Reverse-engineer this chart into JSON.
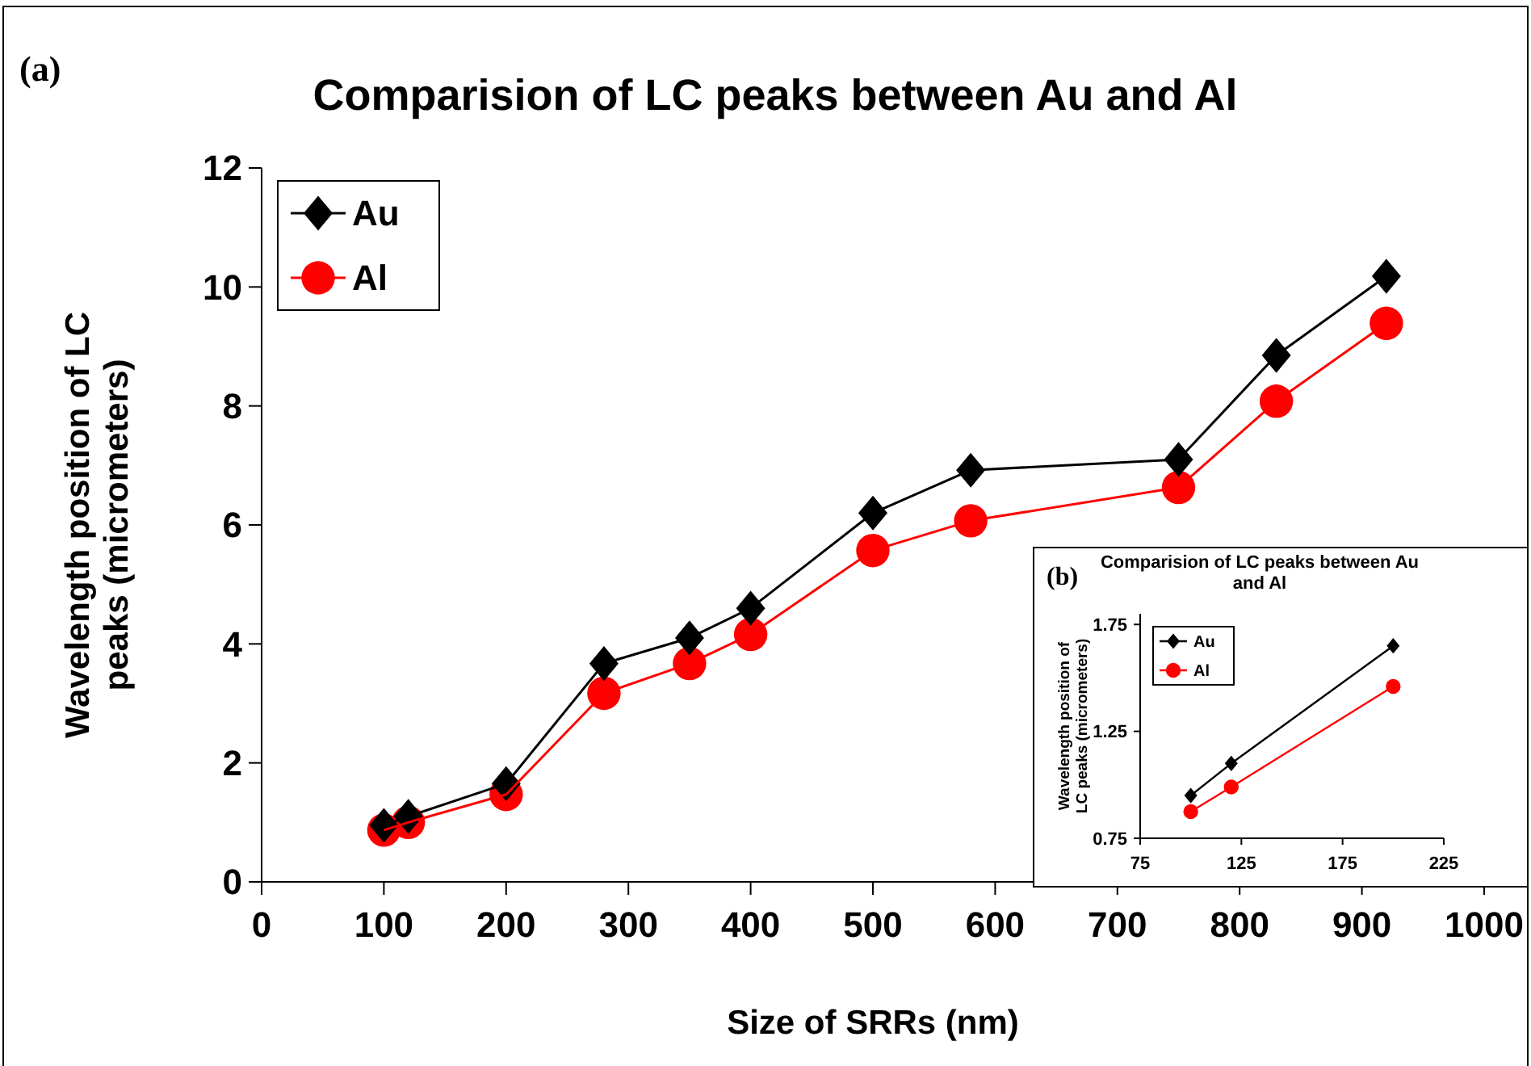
{
  "chart_data": [
    {
      "type": "line",
      "title": "Comparision of LC peaks between Au and Al",
      "xlabel": "Size of SRRs (nm)",
      "ylabel": "Wavelength position of LC peaks (micrometers)",
      "annotations": [
        "(a)"
      ],
      "x": [
        100,
        120,
        200,
        280,
        350,
        400,
        500,
        580,
        750,
        830,
        920
      ],
      "series": [
        {
          "name": "Au",
          "color": "#000000",
          "marker": "diamond",
          "values": [
            0.95,
            1.1,
            1.65,
            3.67,
            4.1,
            4.6,
            6.2,
            6.92,
            7.1,
            8.85,
            10.18
          ]
        },
        {
          "name": "Al",
          "color": "#ff0000",
          "marker": "circle",
          "values": [
            0.87,
            1.0,
            1.47,
            3.17,
            3.67,
            4.16,
            5.57,
            6.07,
            6.63,
            8.08,
            9.39
          ]
        }
      ],
      "xlim": [
        0,
        1000
      ],
      "xticks": [
        0,
        100,
        200,
        300,
        400,
        500,
        600,
        700,
        800,
        900,
        1000
      ],
      "ylim": [
        0,
        12
      ],
      "yticks": [
        0,
        2,
        4,
        6,
        8,
        10,
        12
      ],
      "grid": false,
      "legend": "top left",
      "line_style": "solid"
    },
    {
      "type": "line",
      "title": "Comparision of LC peaks between Au and Al",
      "ylabel": "Wavelength position of LC peaks (micrometers)",
      "annotations": [
        "(b)"
      ],
      "x": [
        100,
        120,
        200
      ],
      "series": [
        {
          "name": "Au",
          "color": "#000000",
          "marker": "diamond",
          "values": [
            0.95,
            1.1,
            1.65
          ]
        },
        {
          "name": "Al",
          "color": "#ff0000",
          "marker": "circle",
          "values": [
            0.875,
            0.99,
            1.46
          ]
        }
      ],
      "xlim": [
        75,
        225
      ],
      "xticks": [
        75,
        125,
        175,
        225
      ],
      "ylim": [
        0.75,
        1.8
      ],
      "yticks": [
        0.75,
        1.25,
        1.75
      ],
      "grid": false,
      "legend": "top left",
      "line_style": "solid"
    }
  ]
}
